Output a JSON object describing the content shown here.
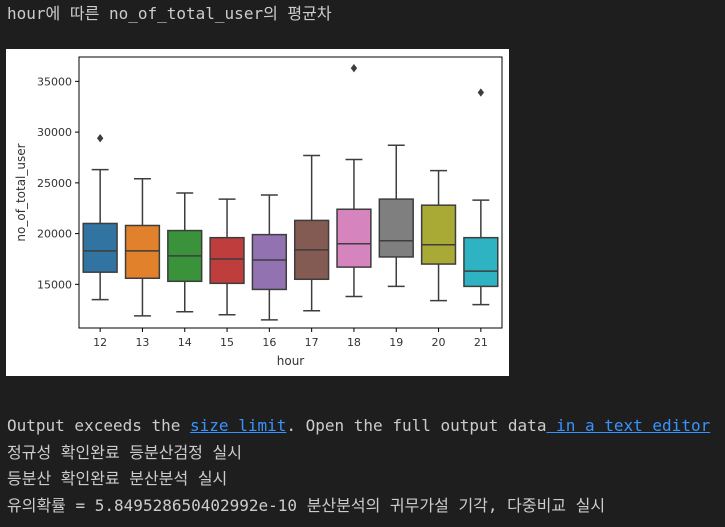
{
  "header": {
    "title": "hour에 따른 no_of_total_user의 평균차"
  },
  "output": {
    "message_prefix": "Output exceeds the ",
    "size_limit_link": "size limit",
    "message_middle": ". Open the full output data",
    "text_editor_link": " in a text editor"
  },
  "log_lines": [
    "정규성 확인완료 등분산검정 실시",
    "등분산 확인완료 분산분석 실시",
    "유의확률 = 5.849528650402992e-10 분산분석의 귀무가설 기각, 다중비교 실시"
  ],
  "colors": {
    "background": "#1e1e1e",
    "text": "#cccccc",
    "link": "#3794ff",
    "figure_background": "#ffffff",
    "axis": "#000000",
    "box_outline": "#3d3d3d"
  },
  "chart_data": {
    "type": "boxplot",
    "xlabel": "hour",
    "ylabel": "no_of_total_user",
    "ylim": [
      10700,
      37400
    ],
    "yticks": [
      15000,
      20000,
      25000,
      30000,
      35000
    ],
    "grid": false,
    "legend": "none",
    "categories": [
      "12",
      "13",
      "14",
      "15",
      "16",
      "17",
      "18",
      "19",
      "20",
      "21"
    ],
    "series": [
      {
        "category": "12",
        "color": "#3274a1",
        "whisker_low": 13500,
        "q1": 16200,
        "median": 18300,
        "q3": 21000,
        "whisker_high": 26300,
        "outliers": [
          29400
        ]
      },
      {
        "category": "13",
        "color": "#e1812c",
        "whisker_low": 11900,
        "q1": 15600,
        "median": 18300,
        "q3": 20800,
        "whisker_high": 25400,
        "outliers": []
      },
      {
        "category": "14",
        "color": "#3a923a",
        "whisker_low": 12300,
        "q1": 15300,
        "median": 17800,
        "q3": 20300,
        "whisker_high": 24000,
        "outliers": []
      },
      {
        "category": "15",
        "color": "#c03d3e",
        "whisker_low": 12000,
        "q1": 15100,
        "median": 17500,
        "q3": 19600,
        "whisker_high": 23400,
        "outliers": []
      },
      {
        "category": "16",
        "color": "#9372b2",
        "whisker_low": 11500,
        "q1": 14500,
        "median": 17400,
        "q3": 19900,
        "whisker_high": 23800,
        "outliers": []
      },
      {
        "category": "17",
        "color": "#845b53",
        "whisker_low": 12400,
        "q1": 15500,
        "median": 18400,
        "q3": 21300,
        "whisker_high": 27700,
        "outliers": []
      },
      {
        "category": "18",
        "color": "#d684bd",
        "whisker_low": 13800,
        "q1": 16700,
        "median": 19000,
        "q3": 22400,
        "whisker_high": 27300,
        "outliers": [
          36300
        ]
      },
      {
        "category": "19",
        "color": "#7f7f7f",
        "whisker_low": 14800,
        "q1": 17700,
        "median": 19300,
        "q3": 23400,
        "whisker_high": 28700,
        "outliers": []
      },
      {
        "category": "20",
        "color": "#a9aa35",
        "whisker_low": 13400,
        "q1": 17000,
        "median": 18900,
        "q3": 22800,
        "whisker_high": 26200,
        "outliers": []
      },
      {
        "category": "21",
        "color": "#2eb3c2",
        "whisker_low": 13000,
        "q1": 14800,
        "median": 16300,
        "q3": 19600,
        "whisker_high": 23300,
        "outliers": [
          33900
        ]
      }
    ]
  }
}
